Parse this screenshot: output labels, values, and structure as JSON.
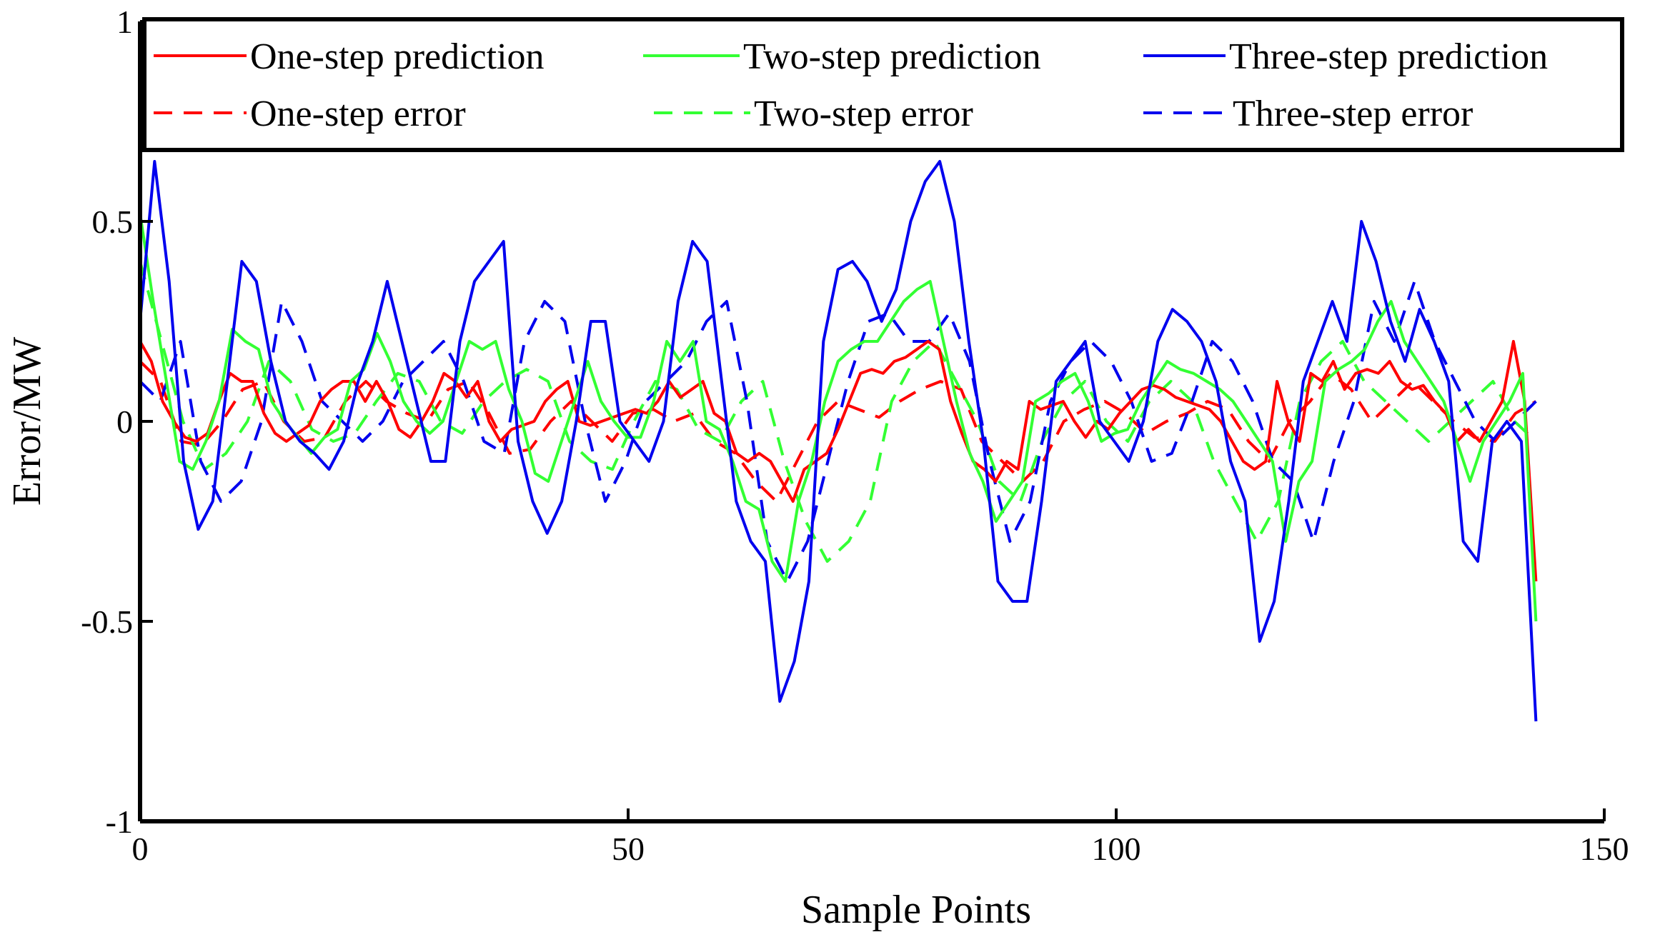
{
  "chart_data": {
    "type": "line",
    "xlabel": "Sample Points",
    "ylabel": "Error/MW",
    "xlim": [
      0,
      150
    ],
    "ylim": [
      -1,
      1
    ],
    "xticks": [
      0,
      50,
      100,
      150
    ],
    "yticks": [
      -1,
      -0.5,
      0,
      0.5,
      1
    ],
    "xtick_labels": [
      "0",
      "50",
      "100",
      "150"
    ],
    "ytick_labels": [
      "-1",
      "-0.5",
      "0",
      "0.5",
      "1"
    ],
    "grid": false,
    "legend_position": "top",
    "series": [
      {
        "name": "One-step prediction",
        "color": "#ff0000",
        "style": "solid",
        "values": [
          0.2,
          0.15,
          0.05,
          0.0,
          -0.04,
          -0.05,
          -0.03,
          0.05,
          0.12,
          0.1,
          0.1,
          0.02,
          -0.03,
          -0.05,
          -0.03,
          -0.01,
          0.05,
          0.08,
          0.1,
          0.1,
          0.05,
          0.1,
          0.05,
          -0.02,
          -0.04,
          0.0,
          0.05,
          0.12,
          0.1,
          0.06,
          0.1,
          0.0,
          -0.05,
          -0.02,
          -0.01,
          0.0,
          0.05,
          0.08,
          0.1,
          0.0,
          -0.01,
          0.0,
          0.01,
          0.02,
          0.03,
          0.02,
          0.05,
          0.1,
          0.06,
          0.08,
          0.1,
          0.02,
          0.0,
          -0.08,
          -0.1,
          -0.08,
          -0.1,
          -0.15,
          -0.2,
          -0.12,
          -0.1,
          -0.08,
          -0.02,
          0.05,
          0.12,
          0.13,
          0.12,
          0.15,
          0.16,
          0.18,
          0.2,
          0.18,
          0.05,
          -0.03,
          -0.1,
          -0.12,
          -0.15,
          -0.1,
          -0.12,
          0.05,
          0.03,
          0.04,
          0.05,
          0.0,
          -0.04,
          0.0,
          -0.02,
          0.02,
          0.05,
          0.08,
          0.09,
          0.08,
          0.06,
          0.05,
          0.04,
          0.03,
          0.0,
          -0.05,
          -0.1,
          -0.12,
          -0.1,
          0.1,
          0.0,
          -0.05,
          0.12,
          0.1,
          0.15,
          0.08,
          0.12,
          0.13,
          0.12,
          0.15,
          0.1,
          0.08,
          0.09,
          0.05,
          0.02,
          -0.05,
          -0.02,
          -0.05,
          0.0,
          0.05,
          0.2,
          0.05,
          -0.4
        ]
      },
      {
        "name": "Two-step prediction",
        "color": "#33ff33",
        "style": "solid",
        "values": [
          0.52,
          0.3,
          0.1,
          -0.1,
          -0.12,
          -0.05,
          0.05,
          0.23,
          0.2,
          0.18,
          0.05,
          0.0,
          -0.04,
          -0.08,
          -0.04,
          -0.02,
          0.1,
          0.13,
          0.22,
          0.15,
          0.05,
          0.0,
          -0.03,
          0.0,
          0.1,
          0.2,
          0.18,
          0.2,
          0.08,
          0.0,
          -0.13,
          -0.15,
          -0.05,
          0.05,
          0.15,
          0.05,
          0.0,
          -0.04,
          -0.04,
          0.05,
          0.2,
          0.15,
          0.2,
          0.0,
          -0.02,
          -0.1,
          -0.2,
          -0.22,
          -0.35,
          -0.4,
          -0.2,
          -0.1,
          0.05,
          0.15,
          0.18,
          0.2,
          0.2,
          0.25,
          0.3,
          0.33,
          0.35,
          0.2,
          0.05,
          -0.08,
          -0.15,
          -0.25,
          -0.2,
          -0.15,
          0.05,
          0.07,
          0.1,
          0.12,
          0.05,
          -0.05,
          -0.03,
          -0.02,
          0.05,
          0.1,
          0.15,
          0.13,
          0.12,
          0.1,
          0.08,
          0.05,
          0.0,
          -0.05,
          -0.1,
          -0.3,
          -0.15,
          -0.1,
          0.1,
          0.13,
          0.15,
          0.18,
          0.25,
          0.3,
          0.2,
          0.15,
          0.1,
          0.05,
          -0.05,
          -0.15,
          -0.05,
          0.0,
          0.05,
          0.12,
          -0.5
        ]
      },
      {
        "name": "Three-step prediction",
        "color": "#0000ee",
        "style": "solid",
        "values": [
          0.25,
          0.65,
          0.35,
          -0.1,
          -0.27,
          -0.2,
          0.1,
          0.4,
          0.35,
          0.15,
          0.0,
          -0.05,
          -0.08,
          -0.12,
          -0.05,
          0.1,
          0.2,
          0.35,
          0.2,
          0.05,
          -0.1,
          -0.1,
          0.2,
          0.35,
          0.4,
          0.45,
          -0.05,
          -0.2,
          -0.28,
          -0.2,
          0.0,
          0.25,
          0.25,
          0.0,
          -0.05,
          -0.1,
          0.0,
          0.3,
          0.45,
          0.4,
          0.1,
          -0.2,
          -0.3,
          -0.35,
          -0.7,
          -0.6,
          -0.4,
          0.2,
          0.38,
          0.4,
          0.35,
          0.25,
          0.33,
          0.5,
          0.6,
          0.65,
          0.5,
          0.2,
          -0.05,
          -0.4,
          -0.45,
          -0.45,
          -0.2,
          0.1,
          0.15,
          0.2,
          0.0,
          -0.05,
          -0.1,
          0.0,
          0.2,
          0.28,
          0.25,
          0.2,
          0.1,
          -0.1,
          -0.2,
          -0.55,
          -0.45,
          -0.2,
          0.1,
          0.2,
          0.3,
          0.2,
          0.5,
          0.4,
          0.25,
          0.15,
          0.28,
          0.2,
          0.1,
          -0.3,
          -0.35,
          -0.05,
          0.0,
          -0.05,
          -0.75
        ]
      },
      {
        "name": "One-step error",
        "color": "#ff0000",
        "style": "dashed",
        "values": [
          0.15,
          0.1,
          -0.05,
          -0.06,
          0.0,
          0.08,
          0.1,
          0.0,
          -0.05,
          -0.04,
          0.05,
          0.1,
          0.05,
          0.02,
          0.0,
          0.08,
          0.1,
          0.02,
          -0.08,
          -0.07,
          0.0,
          0.05,
          0.0,
          -0.05,
          0.02,
          0.03,
          0.0,
          0.02,
          -0.05,
          -0.08,
          -0.15,
          -0.2,
          -0.1,
          0.0,
          0.05,
          0.03,
          0.01,
          0.05,
          0.08,
          0.1,
          0.08,
          -0.05,
          -0.1,
          -0.15,
          -0.1,
          0.0,
          0.03,
          0.05,
          0.02,
          -0.03,
          0.0,
          0.02,
          0.05,
          0.03,
          -0.05,
          -0.1,
          0.0,
          0.05,
          0.12,
          0.08,
          0.0,
          0.05,
          0.1,
          0.05,
          0.0,
          -0.04,
          -0.05,
          0.02,
          0.05
        ]
      },
      {
        "name": "Two-step error",
        "color": "#33ff33",
        "style": "dashed",
        "values": [
          0.4,
          0.2,
          0.0,
          -0.12,
          -0.08,
          0.0,
          0.15,
          0.1,
          -0.02,
          -0.05,
          -0.03,
          0.05,
          0.12,
          0.1,
          0.0,
          -0.03,
          0.05,
          0.1,
          0.13,
          0.1,
          -0.05,
          -0.1,
          -0.12,
          0.0,
          0.1,
          0.08,
          -0.02,
          -0.05,
          0.05,
          0.1,
          -0.1,
          -0.25,
          -0.35,
          -0.3,
          -0.2,
          0.05,
          0.15,
          0.2,
          0.1,
          0.0,
          -0.15,
          -0.2,
          -0.05,
          0.05,
          0.1,
          0.0,
          -0.05,
          0.05,
          0.1,
          0.05,
          -0.1,
          -0.2,
          -0.3,
          -0.2,
          0.05,
          0.15,
          0.2,
          0.1,
          0.05,
          0.0,
          -0.05,
          0.0,
          0.05,
          0.1,
          0.0,
          -0.05
        ]
      },
      {
        "name": "Three-step error",
        "color": "#0000ee",
        "style": "dashed",
        "values": [
          0.1,
          0.05,
          0.2,
          -0.1,
          -0.2,
          -0.15,
          0.0,
          0.3,
          0.2,
          0.05,
          0.0,
          -0.05,
          0.0,
          0.1,
          0.15,
          0.2,
          0.1,
          -0.05,
          -0.08,
          0.2,
          0.3,
          0.25,
          0.0,
          -0.2,
          -0.1,
          0.05,
          0.1,
          0.15,
          0.25,
          0.3,
          0.05,
          -0.3,
          -0.4,
          -0.3,
          -0.1,
          0.1,
          0.25,
          0.27,
          0.2,
          0.2,
          0.27,
          0.15,
          -0.1,
          -0.3,
          -0.2,
          0.05,
          0.15,
          0.2,
          0.15,
          0.05,
          -0.1,
          -0.08,
          0.05,
          0.2,
          0.15,
          0.05,
          -0.1,
          -0.15,
          -0.3,
          -0.1,
          0.05,
          0.3,
          0.2,
          0.35,
          0.2,
          0.1,
          0.0,
          -0.05,
          0.0,
          0.05
        ]
      }
    ]
  }
}
